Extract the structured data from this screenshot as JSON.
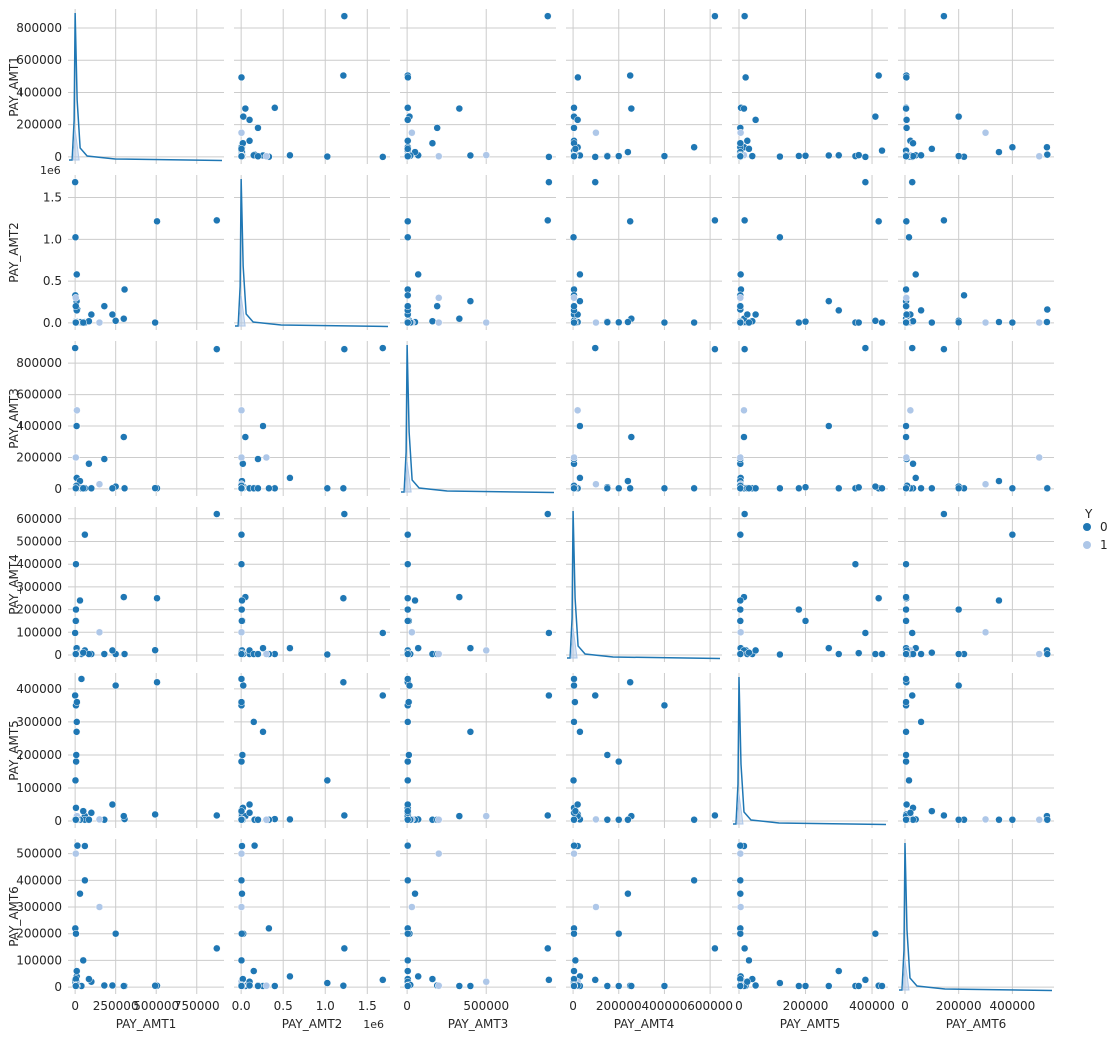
{
  "chart_data": {
    "type": "scatter",
    "title": "",
    "variables": [
      "PAY_AMT1",
      "PAY_AMT2",
      "PAY_AMT3",
      "PAY_AMT4",
      "PAY_AMT5",
      "PAY_AMT6"
    ],
    "hue": {
      "name": "Y",
      "levels": [
        "0",
        "1"
      ],
      "colors": [
        "#1f77b4",
        "#aec7e8"
      ]
    },
    "grid": true,
    "diagonal": "kde",
    "legend_position": "right",
    "axes": {
      "PAY_AMT1": {
        "range": [
          0,
          873552
        ],
        "lim": [
          -44000,
          918000
        ],
        "ticks": [
          0,
          250000,
          500000,
          750000
        ],
        "tick_labels": [
          "0",
          "250000",
          "500000",
          "750000"
        ],
        "y_ticks": [
          0,
          200000,
          400000,
          600000,
          800000
        ],
        "y_tick_labels": [
          "0",
          "200000",
          "400000",
          "600000",
          "800000"
        ],
        "offset": ""
      },
      "PAY_AMT2": {
        "range": [
          0,
          1684259
        ],
        "lim": [
          -85000,
          1770000
        ],
        "ticks": [
          0,
          500000,
          1000000,
          1500000
        ],
        "tick_labels": [
          "0.0",
          "0.5",
          "1.0",
          "1.5"
        ],
        "y_ticks": [
          0,
          500000,
          1000000,
          1500000
        ],
        "y_tick_labels": [
          "0.0",
          "0.5",
          "1.0",
          "1.5"
        ],
        "offset": "1e6"
      },
      "PAY_AMT3": {
        "range": [
          0,
          896040
        ],
        "lim": [
          -45000,
          941000
        ],
        "ticks": [
          0,
          500000
        ],
        "tick_labels": [
          "0",
          "500000"
        ],
        "y_ticks": [
          0,
          200000,
          400000,
          600000,
          800000
        ],
        "y_tick_labels": [
          "0",
          "200000",
          "400000",
          "600000",
          "800000"
        ],
        "offset": ""
      },
      "PAY_AMT4": {
        "range": [
          0,
          621000
        ],
        "lim": [
          -31000,
          652000
        ],
        "ticks": [
          0,
          200000,
          400000,
          600000
        ],
        "tick_labels": [
          "0",
          "200000",
          "400000",
          "600000"
        ],
        "y_ticks": [
          0,
          100000,
          200000,
          300000,
          400000,
          500000,
          600000
        ],
        "y_tick_labels": [
          "0",
          "100000",
          "200000",
          "300000",
          "400000",
          "500000",
          "600000"
        ],
        "offset": ""
      },
      "PAY_AMT5": {
        "range": [
          0,
          426529
        ],
        "lim": [
          -21000,
          448000
        ],
        "ticks": [
          0,
          200000,
          400000
        ],
        "tick_labels": [
          "0",
          "200000",
          "400000"
        ],
        "y_ticks": [
          0,
          100000,
          200000,
          300000,
          400000
        ],
        "y_tick_labels": [
          "0",
          "100000",
          "200000",
          "300000",
          "400000"
        ],
        "offset": ""
      },
      "PAY_AMT6": {
        "range": [
          0,
          528666
        ],
        "lim": [
          -26000,
          555000
        ],
        "ticks": [
          0,
          200000,
          400000
        ],
        "tick_labels": [
          "0",
          "200000",
          "400000"
        ],
        "y_ticks": [
          0,
          100000,
          200000,
          300000,
          400000,
          500000
        ],
        "y_tick_labels": [
          "0",
          "100000",
          "200000",
          "300000",
          "400000",
          "500000"
        ],
        "offset": ""
      }
    },
    "records": [
      [
        873552,
        1227082,
        889043,
        621000,
        17000,
        145000,
        0
      ],
      [
        505000,
        1215471,
        4000,
        250000,
        420000,
        5000,
        0
      ],
      [
        0,
        1684259,
        896040,
        97000,
        380000,
        27000,
        0
      ],
      [
        2000,
        1024516,
        4000,
        2000,
        123000,
        15000,
        0
      ],
      [
        10000,
        580000,
        70000,
        30000,
        5000,
        40000,
        0
      ],
      [
        304815,
        400000,
        4000,
        4000,
        6000,
        4000,
        0
      ],
      [
        493358,
        4000,
        5000,
        21000,
        20000,
        5000,
        0
      ],
      [
        11000,
        4000,
        500000,
        20000,
        15000,
        20000,
        1
      ],
      [
        60000,
        10000,
        4000,
        20000,
        15000,
        528666,
        0
      ],
      [
        39000,
        4000,
        4000,
        4000,
        430000,
        4000,
        0
      ],
      [
        60000,
        4000,
        4000,
        530000,
        4000,
        400000,
        0
      ],
      [
        5000,
        20000,
        4000,
        4000,
        40000,
        30000,
        0
      ],
      [
        300000,
        50000,
        330000,
        255000,
        15000,
        4000,
        0
      ],
      [
        1000,
        330000,
        4000,
        4000,
        4000,
        220000,
        0
      ],
      [
        9000,
        260000,
        400000,
        30000,
        270000,
        4000,
        0
      ],
      [
        100000,
        100000,
        4000,
        4000,
        25000,
        20000,
        0
      ],
      [
        85000,
        20000,
        160000,
        4000,
        4000,
        30000,
        0
      ],
      [
        30000,
        10000,
        50000,
        240000,
        4000,
        350000,
        0
      ],
      [
        5000,
        4000,
        4000,
        400000,
        350000,
        4000,
        0
      ],
      [
        14000,
        160000,
        4000,
        4000,
        4000,
        530000,
        0
      ],
      [
        250000,
        25000,
        15000,
        4000,
        410000,
        200000,
        0
      ],
      [
        4000,
        4000,
        200000,
        4000,
        4000,
        500000,
        1
      ],
      [
        4000,
        4000,
        4000,
        4000,
        4000,
        4000,
        0
      ],
      [
        6000,
        4000,
        4000,
        200000,
        180000,
        4000,
        0
      ],
      [
        7000,
        15000,
        11000,
        150000,
        200000,
        4000,
        0
      ],
      [
        11000,
        4000,
        10000,
        8000,
        360000,
        4000,
        0
      ],
      [
        180000,
        200000,
        190000,
        4000,
        4000,
        6000,
        0
      ],
      [
        150000,
        4000,
        30000,
        100000,
        5000,
        300000,
        1
      ],
      [
        230000,
        100000,
        4000,
        20000,
        50000,
        6000,
        0
      ],
      [
        10000,
        150000,
        4000,
        4000,
        300000,
        60000,
        0
      ],
      [
        4000,
        300000,
        200000,
        4000,
        4000,
        5000,
        1
      ],
      [
        4000,
        8000,
        4000,
        150000,
        4000,
        4000,
        0
      ],
      [
        5000,
        7000,
        4000,
        200000,
        4000,
        200000,
        0
      ],
      [
        50000,
        4000,
        4000,
        10000,
        30000,
        100000,
        0
      ],
      [
        8000,
        4000,
        20000,
        4000,
        4000,
        8000,
        0
      ],
      [
        4000,
        4000,
        4000,
        4000,
        4000,
        4000,
        1
      ],
      [
        4000,
        200000,
        4000,
        4000,
        4000,
        4000,
        0
      ],
      [
        4000,
        4000,
        4000,
        4000,
        4000,
        4000,
        0
      ],
      [
        4000,
        4000,
        4000,
        4000,
        4000,
        4000,
        1
      ],
      [
        4000,
        4000,
        4000,
        4000,
        4000,
        4000,
        0
      ],
      [
        4000,
        4000,
        4000,
        4000,
        4000,
        4000,
        1
      ],
      [
        4000,
        4000,
        4000,
        4000,
        4000,
        4000,
        0
      ],
      [
        4000,
        4000,
        4000,
        4000,
        4000,
        4000,
        0
      ],
      [
        4000,
        4000,
        4000,
        4000,
        4000,
        4000,
        1
      ],
      [
        4000,
        4000,
        4000,
        4000,
        4000,
        4000,
        0
      ],
      [
        4000,
        4000,
        4000,
        4000,
        4000,
        4000,
        0
      ]
    ],
    "record_fields": [
      "PAY_AMT1",
      "PAY_AMT2",
      "PAY_AMT3",
      "PAY_AMT4",
      "PAY_AMT5",
      "PAY_AMT6",
      "Y"
    ]
  }
}
